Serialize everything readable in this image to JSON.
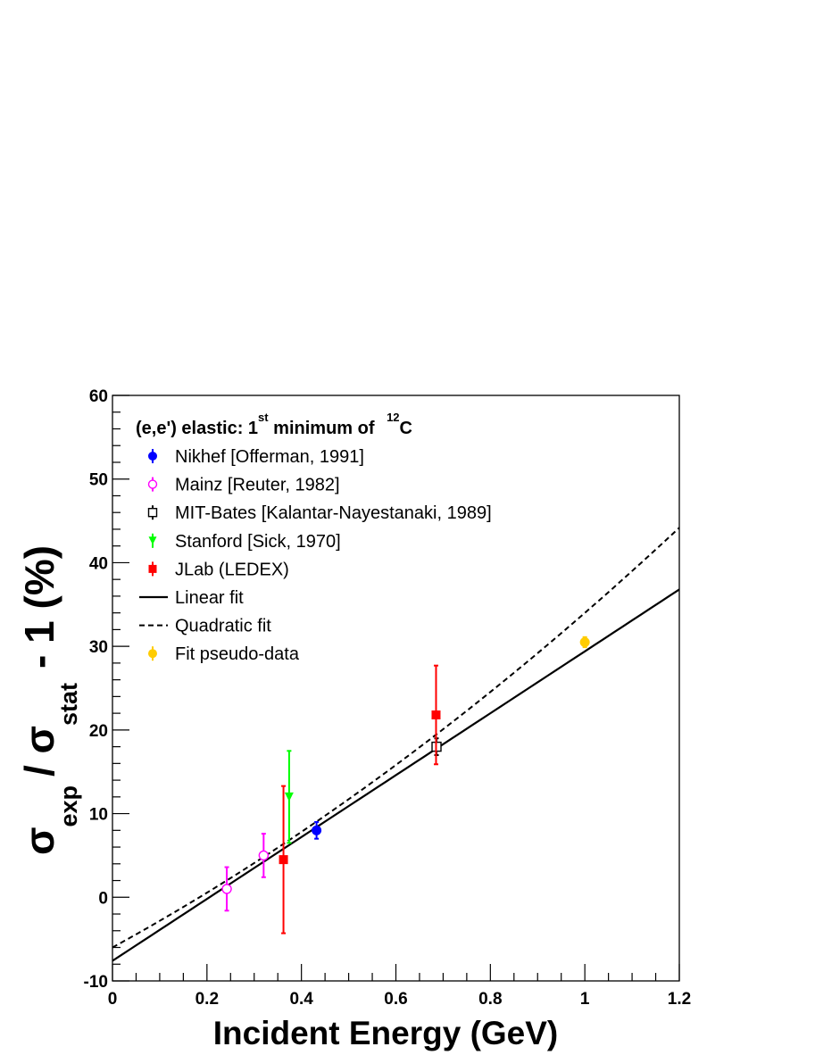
{
  "chart_data": {
    "type": "scatter",
    "xlabel": "Incident Energy (GeV)",
    "ylabel": {
      "sigma": "σ",
      "exp_sub": "exp",
      "slash": "/ σ",
      "stat_sub": "stat",
      "tail": "- 1 (%)"
    },
    "xlim": [
      0,
      1.2
    ],
    "ylim": [
      -10,
      60
    ],
    "xticks": [
      "0",
      "0.2",
      "0.4",
      "0.6",
      "0.8",
      "1",
      "1.2"
    ],
    "yticks": [
      "-10",
      "0",
      "10",
      "20",
      "30",
      "40",
      "50",
      "60"
    ],
    "legend": {
      "position": "top-left",
      "header": {
        "prefix": "(e,e') elastic: 1",
        "sup1": "st",
        "middle": " minimum of ",
        "sup2": "12",
        "suffix": "C"
      }
    },
    "series": [
      {
        "name": "Nikhef [Offerman, 1991]",
        "color": "#0000ff",
        "marker": "filled-circle",
        "points": [
          {
            "x": 0.432,
            "y": 8.0,
            "err": 1.0
          }
        ]
      },
      {
        "name": "Mainz [Reuter, 1982]",
        "color": "#ff00ff",
        "marker": "open-circle",
        "points": [
          {
            "x": 0.242,
            "y": 1.0,
            "err": 2.6
          },
          {
            "x": 0.32,
            "y": 5.0,
            "err": 2.6
          }
        ]
      },
      {
        "name": "MIT-Bates [Kalantar-Nayestanaki, 1989]",
        "color": "#000000",
        "marker": "open-square",
        "points": [
          {
            "x": 0.686,
            "y": 18.0,
            "err": 1.0
          }
        ]
      },
      {
        "name": "Stanford [Sick, 1970]",
        "color": "#00ff00",
        "marker": "filled-triangle-down",
        "points": [
          {
            "x": 0.374,
            "y": 12.0,
            "err": 5.5
          }
        ]
      },
      {
        "name": "JLab (LEDEX)",
        "color": "#ff0000",
        "marker": "filled-square",
        "points": [
          {
            "x": 0.362,
            "y": 4.5,
            "err": 8.8
          },
          {
            "x": 0.685,
            "y": 21.8,
            "err": 5.9
          }
        ]
      },
      {
        "name": "Linear fit",
        "color": "#000000",
        "marker": "line-solid",
        "line": {
          "intercept": -7.6,
          "slope": 37.0,
          "x_start": 0.0,
          "x_end": 1.2
        }
      },
      {
        "name": "Quadratic fit",
        "color": "#000000",
        "marker": "line-dashed",
        "curve": {
          "c0": -6.0,
          "c1": 30.9,
          "c2": 9.1,
          "x_start": 0.0,
          "x_end": 1.2
        }
      },
      {
        "name": "Fit pseudo-data",
        "color": "#ffcc00",
        "marker": "filled-circle",
        "points": [
          {
            "x": 1.0,
            "y": 30.5,
            "err": 0.6
          }
        ]
      }
    ]
  }
}
